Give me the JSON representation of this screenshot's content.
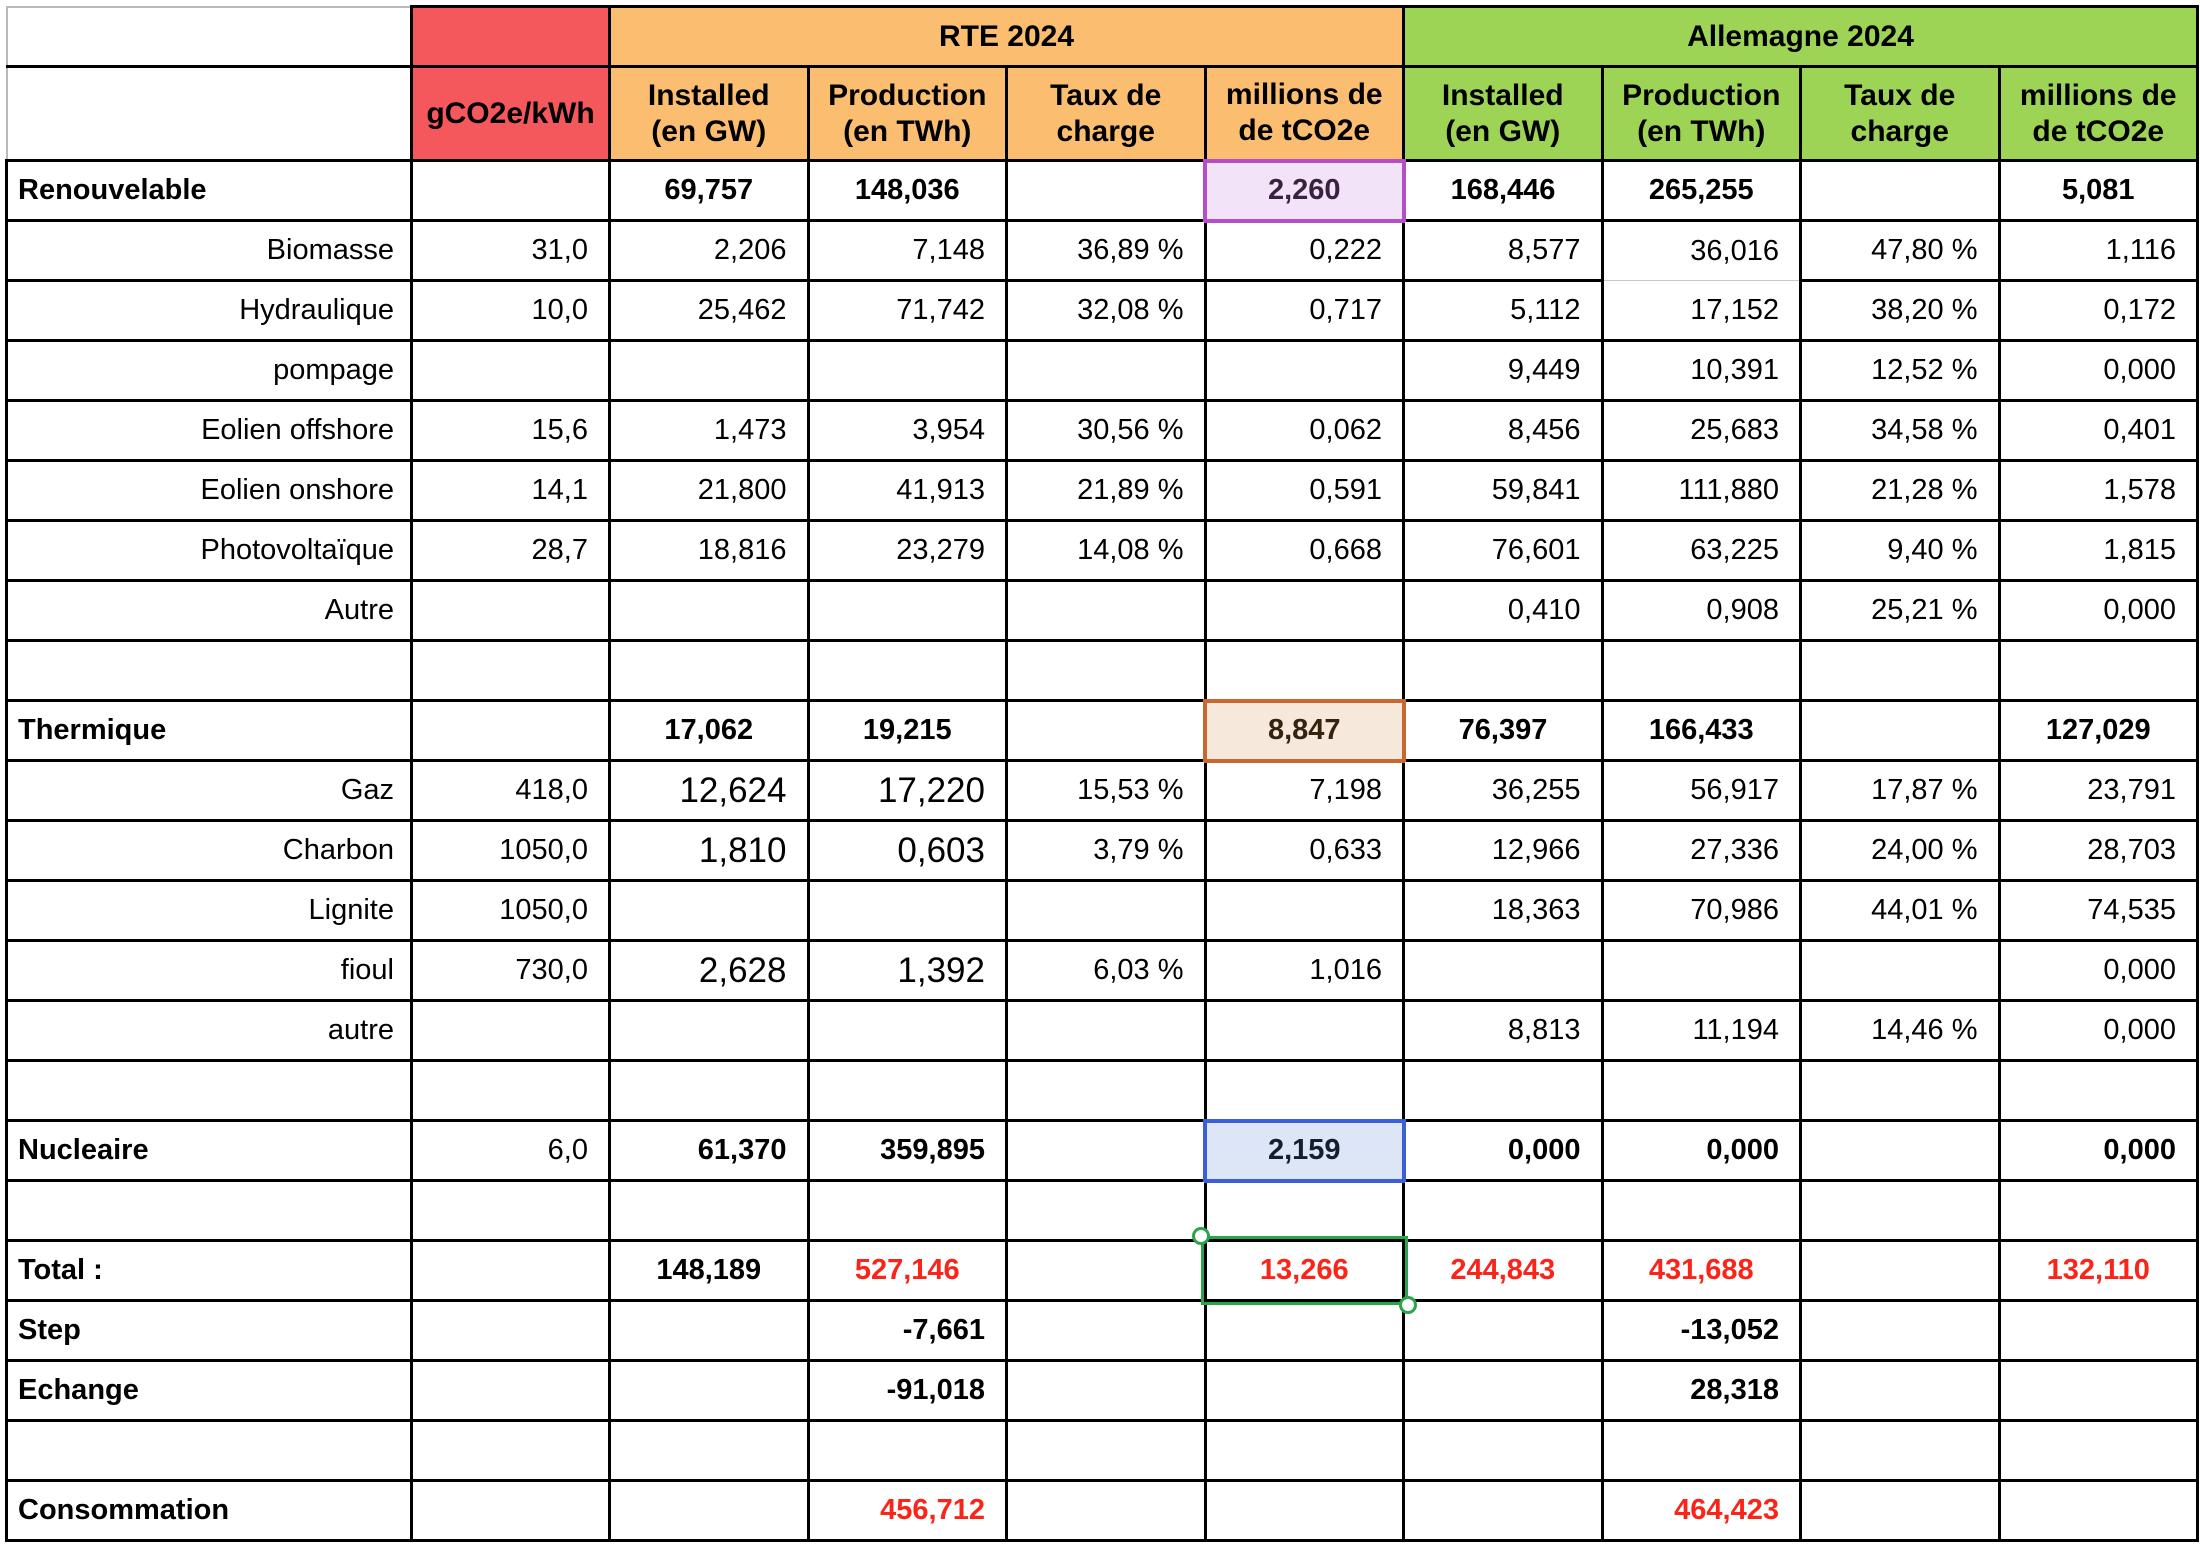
{
  "header": {
    "gco2e_label": "gCO2e/kWh",
    "rte": {
      "title": "RTE 2024",
      "columns": [
        "Installed\n(en GW)",
        "Production\n(en TWh)",
        "Taux de\ncharge",
        "millions de\nde tCO2e"
      ]
    },
    "allemagne": {
      "title": "Allemagne 2024",
      "columns": [
        "Installed\n(en GW)",
        "Production\n(en TWh)",
        "Taux de\ncharge",
        "millions de\nde tCO2e"
      ]
    }
  },
  "colors": {
    "gco2e_header": "#F4585C",
    "rte_header": "#FBBE71",
    "allemagne_header": "#9ED455",
    "highlight_purple_bg": "#F2E3F8",
    "highlight_purple_border": "#B44EC9",
    "highlight_orange_bg": "#F6E9DC",
    "highlight_orange_border": "#C8672F",
    "highlight_blue_bg": "#DDE6F7",
    "highlight_blue_border": "#3C5ED8",
    "selection_green": "#2AA44D",
    "negative_total_red": "#FB2418"
  },
  "table": {
    "rows": [
      {
        "label": "Renouvelable",
        "type": "section",
        "cells": [
          {},
          {
            "v": "69,757",
            "s": "b c"
          },
          {
            "v": "148,036",
            "s": "b c"
          },
          {},
          {
            "v": "2,260",
            "s": "b c hlP",
            "n": "highlight-purple-cell"
          },
          {
            "v": "168,446",
            "s": "b c"
          },
          {
            "v": "265,255",
            "s": "b c"
          },
          {},
          {
            "v": "5,081",
            "s": "b c"
          }
        ]
      },
      {
        "label": "Biomasse",
        "type": "sub",
        "cells": [
          {
            "v": "31,0"
          },
          {
            "v": "2,206"
          },
          {
            "v": "7,148"
          },
          {
            "v": "36,89 %"
          },
          {
            "v": "0,222"
          },
          {
            "v": "8,577"
          },
          {
            "v": "36,016",
            "s": "thinb"
          },
          {
            "v": "47,80 %"
          },
          {
            "v": "1,116"
          }
        ]
      },
      {
        "label": "Hydraulique",
        "type": "sub",
        "cells": [
          {
            "v": "10,0"
          },
          {
            "v": "25,462"
          },
          {
            "v": "71,742"
          },
          {
            "v": "32,08 %"
          },
          {
            "v": "0,717"
          },
          {
            "v": "5,112"
          },
          {
            "v": "17,152",
            "s": "thint"
          },
          {
            "v": "38,20 %"
          },
          {
            "v": "0,172"
          }
        ]
      },
      {
        "label": "pompage",
        "type": "sub",
        "cells": [
          {},
          {},
          {},
          {},
          {},
          {
            "v": "9,449"
          },
          {
            "v": "10,391"
          },
          {
            "v": "12,52 %"
          },
          {
            "v": "0,000"
          }
        ]
      },
      {
        "label": "Eolien offshore",
        "type": "sub",
        "cells": [
          {
            "v": "15,6"
          },
          {
            "v": "1,473"
          },
          {
            "v": "3,954"
          },
          {
            "v": "30,56 %"
          },
          {
            "v": "0,062"
          },
          {
            "v": "8,456"
          },
          {
            "v": "25,683"
          },
          {
            "v": "34,58 %"
          },
          {
            "v": "0,401"
          }
        ]
      },
      {
        "label": "Eolien onshore",
        "type": "sub",
        "cells": [
          {
            "v": "14,1"
          },
          {
            "v": "21,800"
          },
          {
            "v": "41,913"
          },
          {
            "v": "21,89 %"
          },
          {
            "v": "0,591"
          },
          {
            "v": "59,841"
          },
          {
            "v": "111,880"
          },
          {
            "v": "21,28 %"
          },
          {
            "v": "1,578"
          }
        ]
      },
      {
        "label": "Photovoltaïque",
        "type": "sub",
        "cells": [
          {
            "v": "28,7"
          },
          {
            "v": "18,816"
          },
          {
            "v": "23,279"
          },
          {
            "v": "14,08 %"
          },
          {
            "v": "0,668"
          },
          {
            "v": "76,601"
          },
          {
            "v": "63,225"
          },
          {
            "v": "9,40 %"
          },
          {
            "v": "1,815"
          }
        ]
      },
      {
        "label": "Autre",
        "type": "sub",
        "cells": [
          {},
          {},
          {},
          {},
          {},
          {
            "v": "0,410"
          },
          {
            "v": "0,908"
          },
          {
            "v": "25,21 %"
          },
          {
            "v": "0,000"
          }
        ]
      },
      {
        "label": "",
        "type": "sub",
        "cells": [
          {},
          {},
          {},
          {},
          {},
          {},
          {},
          {},
          {}
        ]
      },
      {
        "label": "Thermique",
        "type": "section",
        "cells": [
          {},
          {
            "v": "17,062",
            "s": "b c"
          },
          {
            "v": "19,215",
            "s": "b c"
          },
          {},
          {
            "v": "8,847",
            "s": "b c hlO",
            "n": "highlight-orange-cell"
          },
          {
            "v": "76,397",
            "s": "b c"
          },
          {
            "v": "166,433",
            "s": "b c"
          },
          {},
          {
            "v": "127,029",
            "s": "b c"
          }
        ]
      },
      {
        "label": "Gaz",
        "type": "sub",
        "cells": [
          {
            "v": "418,0"
          },
          {
            "v": "12,624",
            "s": "big"
          },
          {
            "v": "17,220",
            "s": "big"
          },
          {
            "v": "15,53 %"
          },
          {
            "v": "7,198"
          },
          {
            "v": "36,255"
          },
          {
            "v": "56,917"
          },
          {
            "v": "17,87 %"
          },
          {
            "v": "23,791"
          }
        ]
      },
      {
        "label": "Charbon",
        "type": "sub",
        "cells": [
          {
            "v": "1050,0"
          },
          {
            "v": "1,810",
            "s": "big"
          },
          {
            "v": "0,603",
            "s": "big"
          },
          {
            "v": "3,79 %"
          },
          {
            "v": "0,633"
          },
          {
            "v": "12,966"
          },
          {
            "v": "27,336"
          },
          {
            "v": "24,00 %"
          },
          {
            "v": "28,703"
          }
        ]
      },
      {
        "label": "Lignite",
        "type": "sub",
        "cells": [
          {
            "v": "1050,0"
          },
          {},
          {},
          {},
          {},
          {
            "v": "18,363"
          },
          {
            "v": "70,986"
          },
          {
            "v": "44,01 %"
          },
          {
            "v": "74,535"
          }
        ]
      },
      {
        "label": "fioul",
        "type": "sub",
        "cells": [
          {
            "v": "730,0"
          },
          {
            "v": "2,628",
            "s": "big"
          },
          {
            "v": "1,392",
            "s": "big"
          },
          {
            "v": "6,03 %"
          },
          {
            "v": "1,016"
          },
          {},
          {},
          {},
          {
            "v": "0,000"
          }
        ]
      },
      {
        "label": "autre",
        "type": "sub",
        "cells": [
          {},
          {},
          {},
          {},
          {},
          {
            "v": "8,813"
          },
          {
            "v": "11,194"
          },
          {
            "v": "14,46 %"
          },
          {
            "v": "0,000"
          }
        ]
      },
      {
        "label": "",
        "type": "sub",
        "cells": [
          {},
          {},
          {},
          {},
          {},
          {},
          {},
          {},
          {}
        ]
      },
      {
        "label": "Nucleaire",
        "type": "section",
        "cells": [
          {
            "v": "6,0"
          },
          {
            "v": "61,370",
            "s": "b"
          },
          {
            "v": "359,895",
            "s": "b"
          },
          {},
          {
            "v": "2,159",
            "s": "b c hlB",
            "n": "highlight-blue-cell"
          },
          {
            "v": "0,000",
            "s": "b"
          },
          {
            "v": "0,000",
            "s": "b"
          },
          {},
          {
            "v": "0,000",
            "s": "b"
          }
        ]
      },
      {
        "label": "",
        "type": "sub",
        "cells": [
          {},
          {},
          {},
          {},
          {},
          {},
          {},
          {},
          {}
        ]
      },
      {
        "label": "Total :",
        "type": "section",
        "cells": [
          {},
          {
            "v": "148,189",
            "s": "b c"
          },
          {
            "v": "527,146",
            "s": "b c red"
          },
          {},
          {
            "v": "13,266",
            "s": "b c red sel",
            "n": "selected-cell"
          },
          {
            "v": "244,843",
            "s": "b c red"
          },
          {
            "v": "431,688",
            "s": "b c red"
          },
          {},
          {
            "v": "132,110",
            "s": "b c red"
          }
        ]
      },
      {
        "label": "Step",
        "type": "section",
        "cells": [
          {},
          {},
          {
            "v": "-7,661",
            "s": "b"
          },
          {},
          {},
          {},
          {
            "v": "-13,052",
            "s": "b"
          },
          {},
          {}
        ]
      },
      {
        "label": "Echange",
        "type": "section",
        "cells": [
          {},
          {},
          {
            "v": "-91,018",
            "s": "b"
          },
          {},
          {},
          {},
          {
            "v": "28,318",
            "s": "b"
          },
          {},
          {}
        ]
      },
      {
        "label": "",
        "type": "sub",
        "cells": [
          {},
          {},
          {},
          {},
          {},
          {},
          {},
          {},
          {}
        ]
      },
      {
        "label": "Consommation",
        "type": "section",
        "cells": [
          {},
          {},
          {
            "v": "456,712",
            "s": "b red"
          },
          {},
          {},
          {},
          {
            "v": "464,423",
            "s": "b red"
          },
          {},
          {}
        ]
      }
    ]
  }
}
